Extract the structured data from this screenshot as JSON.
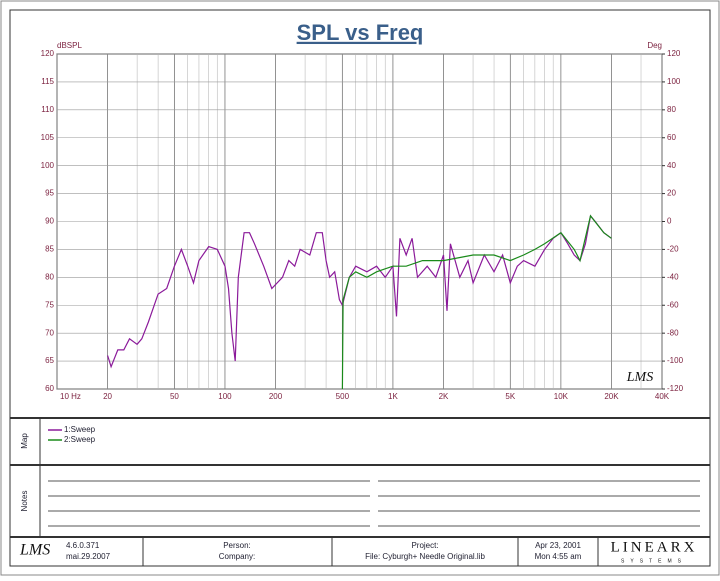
{
  "chart_data": {
    "type": "line",
    "title": "SPL vs Freq",
    "y_label": "dBSPL",
    "y2_label": "Deg",
    "watermark": "LMS",
    "xscale": "log",
    "grid": true,
    "xlim": [
      10,
      40000
    ],
    "ylim": [
      60,
      120
    ],
    "y2lim": [
      -120,
      120
    ],
    "xticks": [
      {
        "value": 10,
        "label": "10 Hz"
      },
      20,
      50,
      100,
      200,
      500,
      {
        "value": 1000,
        "label": "1K"
      },
      {
        "value": 2000,
        "label": "2K"
      },
      {
        "value": 5000,
        "label": "5K"
      },
      {
        "value": 10000,
        "label": "10K"
      },
      {
        "value": 20000,
        "label": "20K"
      },
      {
        "value": 40000,
        "label": "40K"
      }
    ],
    "xminor": [
      30,
      40,
      60,
      70,
      80,
      90,
      300,
      400,
      600,
      700,
      800,
      900,
      3000,
      4000,
      6000,
      7000,
      8000,
      9000,
      30000
    ],
    "yticks": [
      60,
      65,
      70,
      75,
      80,
      85,
      90,
      95,
      100,
      105,
      110,
      115,
      120
    ],
    "y2ticks": [
      -120,
      -100,
      -80,
      -60,
      -40,
      -20,
      0,
      20,
      40,
      60,
      80,
      100,
      120
    ],
    "series": [
      {
        "name": "1:Sweep",
        "color": "#8b1a9a",
        "x": [
          20,
          21,
          23,
          25,
          27,
          30,
          32,
          35,
          40,
          45,
          50,
          55,
          60,
          65,
          70,
          80,
          90,
          100,
          105,
          110,
          115,
          120,
          130,
          140,
          150,
          170,
          190,
          220,
          240,
          260,
          280,
          320,
          350,
          380,
          400,
          420,
          450,
          480,
          500,
          550,
          600,
          700,
          800,
          900,
          1000,
          1050,
          1100,
          1200,
          1300,
          1400,
          1600,
          1800,
          2000,
          2100,
          2200,
          2500,
          2800,
          3000,
          3500,
          4000,
          4500,
          5000,
          5500,
          6000,
          7000,
          8000,
          9000,
          10000,
          11000,
          12000,
          13000,
          14000,
          15000,
          16000,
          18000,
          20000
        ],
        "values": [
          66,
          64,
          67,
          67,
          69,
          68,
          69,
          72,
          77,
          78,
          82,
          85,
          82,
          79,
          83,
          85.5,
          85,
          82,
          78,
          70,
          65,
          80,
          88,
          88,
          86,
          82,
          78,
          80,
          83,
          82,
          85,
          84,
          88,
          88,
          83,
          80,
          81,
          76,
          75,
          80,
          82,
          81,
          82,
          80,
          82,
          73,
          87,
          84,
          87,
          80,
          82,
          80,
          84,
          74,
          86,
          80,
          83,
          79,
          84,
          81,
          84,
          79,
          82,
          83,
          82,
          85,
          87,
          88,
          86,
          84,
          83,
          86,
          91,
          90,
          88,
          87
        ]
      },
      {
        "name": "2:Sweep",
        "color": "#1a8a1a",
        "x": [
          500,
          505,
          550,
          600,
          700,
          800,
          1000,
          1200,
          1500,
          2000,
          3000,
          4000,
          5000,
          6000,
          7000,
          8000,
          10000,
          12000,
          13000,
          15000,
          18000,
          20000
        ],
        "values": [
          60,
          76,
          80,
          81,
          80,
          81,
          82,
          82,
          83,
          83,
          84,
          84,
          83,
          84,
          85,
          86,
          88,
          85,
          83,
          91,
          88,
          87
        ]
      }
    ]
  },
  "map_label": "Map",
  "notes_label": "Notes",
  "footer": {
    "logo": "LMS",
    "version": "4.6.0.371",
    "date": "mai.29.2007",
    "person": "Person:",
    "company": "Company:",
    "project": "Project:",
    "file": "File: Cyburgh+ Needle Original.lib",
    "run_date": "Apr 23, 2001",
    "run_time": "Mon 4:55 am",
    "brand": "LINEARX",
    "brand_sub": "SYSTEMS"
  }
}
